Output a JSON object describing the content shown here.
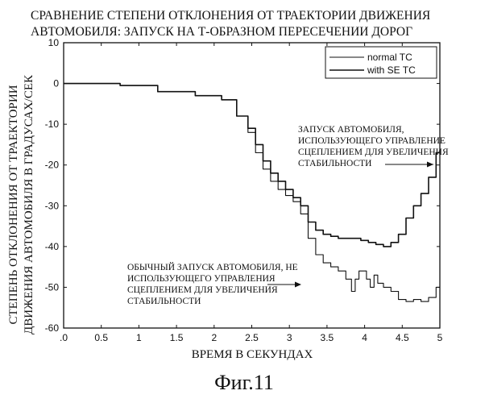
{
  "chart_data": {
    "type": "line",
    "title": [
      "СРАВНЕНИЕ СТЕПЕНИ ОТКЛОНЕНИЯ ОТ ТРАЕКТОРИИ ДВИЖЕНИЯ",
      "АВТОМОБИЛЯ: ЗАПУСК НА Т-ОБРАЗНОМ ПЕРЕСЕЧЕНИИ ДОРОГ"
    ],
    "xlabel": "ВРЕМЯ В СЕКУНДАХ",
    "ylabel": [
      "СТЕПЕНЬ ОТКЛОНЕНИЯ ОТ ТРАЕКТОРИИ",
      "ДВИЖЕНИЯ АВТОМОБИЛЯ В ГРАДУСАХ/СЕК"
    ],
    "xlim": [
      0,
      5
    ],
    "ylim": [
      -60,
      10
    ],
    "x_ticks": [
      ".0",
      "0.5",
      "1",
      "1.5",
      "2",
      "2.5",
      "3",
      "3.5",
      "4",
      "4.5",
      "5"
    ],
    "y_ticks": [
      "10",
      "0",
      "-10",
      "-20",
      "-30",
      "-40",
      "-50",
      "-60"
    ],
    "legend_position": "top-right",
    "grid": false,
    "series": [
      {
        "name": "normal TC",
        "x": [
          0,
          0.5,
          1.0,
          1.5,
          2.0,
          2.2,
          2.4,
          2.5,
          2.6,
          2.7,
          2.8,
          2.9,
          3.0,
          3.1,
          3.2,
          3.3,
          3.4,
          3.5,
          3.6,
          3.7,
          3.8,
          3.85,
          3.9,
          3.95,
          4.0,
          4.05,
          4.1,
          4.15,
          4.2,
          4.3,
          4.4,
          4.5,
          4.6,
          4.7,
          4.8,
          4.9,
          5.0
        ],
        "y": [
          0,
          0,
          -0.5,
          -2,
          -3,
          -4,
          -8,
          -12,
          -17,
          -21,
          -24,
          -26,
          -27.5,
          -29,
          -32,
          -38,
          -42,
          -44,
          -45,
          -46,
          -48,
          -51,
          -48,
          -46,
          -46,
          -48,
          -50,
          -47,
          -49,
          -50,
          -51,
          -53,
          -53.5,
          -53,
          -53.5,
          -52.5,
          -50
        ]
      },
      {
        "name": "with SE TC",
        "x": [
          0,
          0.5,
          1.0,
          1.5,
          2.0,
          2.2,
          2.4,
          2.5,
          2.6,
          2.7,
          2.8,
          2.9,
          3.0,
          3.1,
          3.2,
          3.3,
          3.4,
          3.5,
          3.6,
          3.7,
          3.8,
          3.9,
          4.0,
          4.1,
          4.2,
          4.3,
          4.4,
          4.5,
          4.6,
          4.7,
          4.8,
          4.9,
          5.0
        ],
        "y": [
          0,
          0,
          -0.5,
          -2,
          -3,
          -4,
          -8,
          -11,
          -15,
          -19,
          -22,
          -24,
          -26,
          -28,
          -30,
          -34,
          -36,
          -37,
          -37.5,
          -38,
          -38,
          -38,
          -38.5,
          -39,
          -39.5,
          -40,
          -39,
          -37,
          -33,
          -30,
          -27,
          -23,
          -17
        ]
      }
    ],
    "annotations": [
      {
        "lines": [
          "ЗАПУСК АВТОМОБИЛЯ,",
          "ИСПОЛЬЗУЮЩЕГО УПРАВЛЕНИЕ",
          "СЦЕПЛЕНИЕМ ДЛЯ УВЕЛИЧЕНИЯ",
          "СТАБИЛЬНОСТИ"
        ],
        "target": [
          4.95,
          -19.5
        ]
      },
      {
        "lines": [
          "ОБЫЧНЫЙ ЗАПУСК АВТОМОБИЛЯ, НЕ",
          "ИСПОЛЬЗУЮЩЕГО УПРАВЛЕНИЯ",
          "СЦЕПЛЕНИЕМ ДЛЯ УВЕЛИЧЕНИЯ",
          "СТАБИЛЬНОСТИ"
        ],
        "target": [
          3.85,
          -48.5
        ]
      }
    ]
  },
  "figure_caption": "Фиг.11"
}
